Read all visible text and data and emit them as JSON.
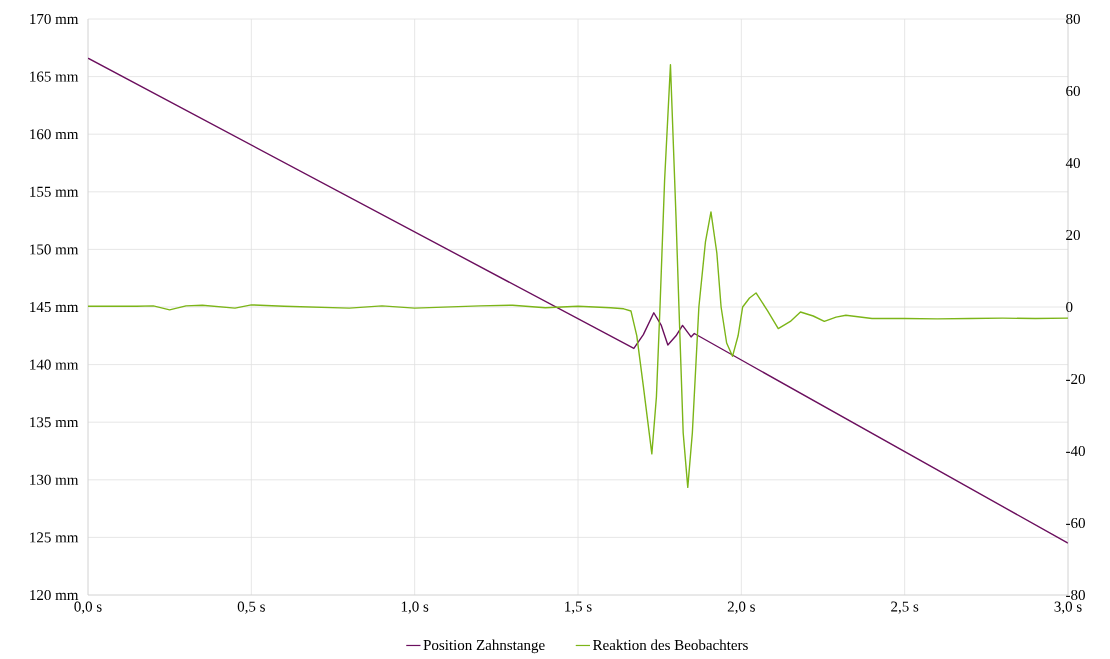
{
  "chart_data": {
    "type": "line",
    "xlim": [
      0,
      3
    ],
    "ylim": [
      120,
      170
    ],
    "y2lim": [
      -80,
      80
    ],
    "xticks": [
      {
        "value": 0,
        "label": "0,0 s"
      },
      {
        "value": 0.5,
        "label": "0,5 s"
      },
      {
        "value": 1,
        "label": "1,0 s"
      },
      {
        "value": 1.5,
        "label": "1,5 s"
      },
      {
        "value": 2,
        "label": "2,0 s"
      },
      {
        "value": 2.5,
        "label": "2,5 s"
      },
      {
        "value": 3,
        "label": "3,0 s"
      }
    ],
    "yticks": [
      {
        "value": 120,
        "label": "120 mm"
      },
      {
        "value": 125,
        "label": "125 mm"
      },
      {
        "value": 130,
        "label": "130 mm"
      },
      {
        "value": 135,
        "label": "135 mm"
      },
      {
        "value": 140,
        "label": "140 mm"
      },
      {
        "value": 145,
        "label": "145 mm"
      },
      {
        "value": 150,
        "label": "150 mm"
      },
      {
        "value": 155,
        "label": "155 mm"
      },
      {
        "value": 160,
        "label": "160 mm"
      },
      {
        "value": 165,
        "label": "165 mm"
      },
      {
        "value": 170,
        "label": "170 mm"
      }
    ],
    "y2ticks": [
      -80,
      -60,
      -40,
      -20,
      0,
      20,
      40,
      60,
      80
    ],
    "grid": true,
    "legend": "bottom",
    "marker": "none",
    "line_style": "solid",
    "series": [
      {
        "name": "Position Zahnstange",
        "color": "#6b0f5e",
        "x": [
          0,
          1.671,
          1.7,
          1.732,
          1.755,
          1.775,
          1.8,
          1.82,
          1.846,
          1.856,
          2.0,
          3.0
        ],
        "values": [
          166.6,
          141.4,
          142.6,
          144.5,
          143.4,
          141.7,
          142.5,
          143.4,
          142.4,
          142.7,
          140.4,
          124.5
        ]
      },
      {
        "name": "Reaktion des Beobachters",
        "color": "#7cb518",
        "axis": "y2",
        "x": [
          0,
          0.15,
          0.2,
          0.25,
          0.3,
          0.35,
          0.45,
          0.5,
          0.6,
          0.8,
          0.9,
          1.0,
          1.2,
          1.3,
          1.4,
          1.5,
          1.6,
          1.64,
          1.662,
          1.68,
          1.7,
          1.726,
          1.74,
          1.751,
          1.765,
          1.783,
          1.8,
          1.809,
          1.822,
          1.836,
          1.85,
          1.87,
          1.89,
          1.907,
          1.925,
          1.938,
          1.955,
          1.973,
          1.99,
          2.004,
          2.025,
          2.045,
          2.08,
          2.113,
          2.15,
          2.181,
          2.22,
          2.254,
          2.29,
          2.32,
          2.4,
          2.5,
          2.6,
          2.7,
          2.8,
          2.9,
          3.0
        ],
        "values": [
          0.2,
          0.2,
          0.3,
          -0.8,
          0.3,
          0.5,
          -0.3,
          0.6,
          0.2,
          -0.3,
          0.3,
          -0.3,
          0.3,
          0.5,
          -0.2,
          0.2,
          -0.2,
          -0.5,
          -1.1,
          -8,
          -22,
          -40.8,
          -25,
          0,
          35,
          67.3,
          25,
          0,
          -35,
          -50.1,
          -35,
          0,
          18,
          26.4,
          15,
          0,
          -10,
          -13.7,
          -8,
          0,
          2.5,
          3.9,
          -1,
          -6.0,
          -4,
          -1.4,
          -2.5,
          -4.0,
          -2.8,
          -2.3,
          -3.2,
          -3.2,
          -3.3,
          -3.2,
          -3.1,
          -3.2,
          -3.1
        ]
      }
    ]
  }
}
